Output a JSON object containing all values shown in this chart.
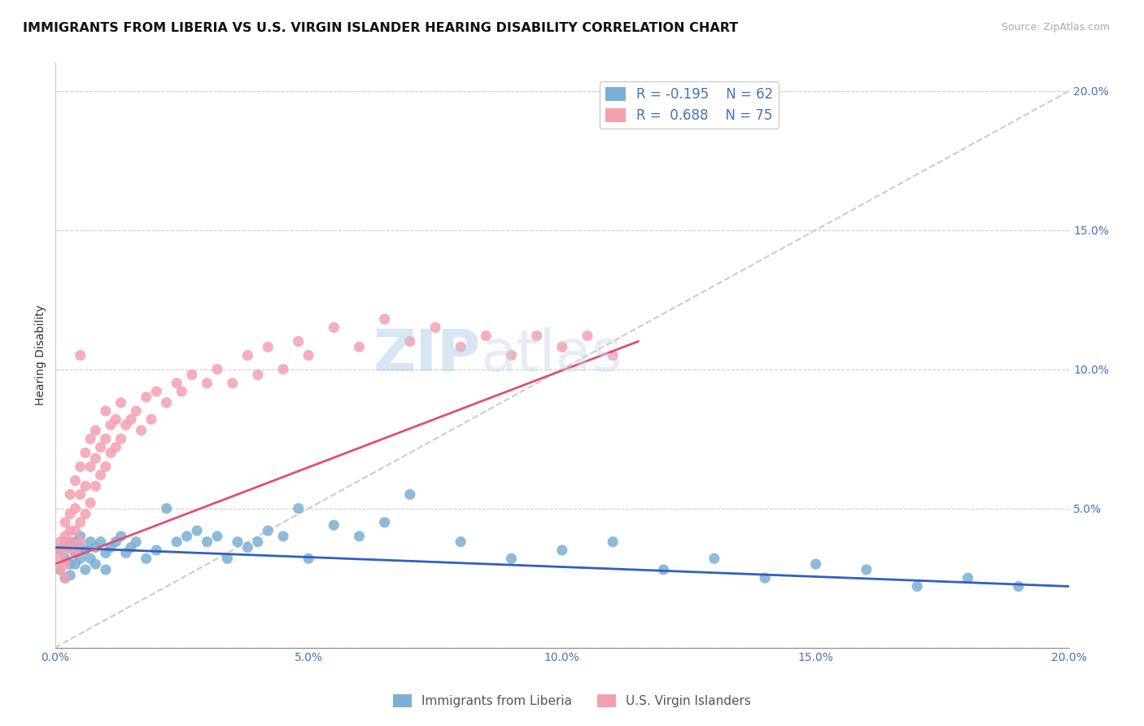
{
  "title": "IMMIGRANTS FROM LIBERIA VS U.S. VIRGIN ISLANDER HEARING DISABILITY CORRELATION CHART",
  "source_text": "Source: ZipAtlas.com",
  "ylabel": "Hearing Disability",
  "xlim": [
    0.0,
    0.2
  ],
  "ylim": [
    0.0,
    0.21
  ],
  "xticks": [
    0.0,
    0.05,
    0.1,
    0.15,
    0.2
  ],
  "yticks": [
    0.0,
    0.05,
    0.1,
    0.15,
    0.2
  ],
  "xticklabels": [
    "0.0%",
    "5.0%",
    "10.0%",
    "15.0%",
    "20.0%"
  ],
  "yticklabels_right": [
    "",
    "5.0%",
    "10.0%",
    "15.0%",
    "20.0%"
  ],
  "blue_color": "#7bafd4",
  "pink_color": "#f4a0b0",
  "blue_line_color": "#3060c0",
  "pink_line_color": "#e05070",
  "R_blue": -0.195,
  "N_blue": 62,
  "R_pink": 0.688,
  "N_pink": 75,
  "legend_R_blue_text": "R = -0.195",
  "legend_N_blue_text": "N = 62",
  "legend_R_pink_text": "R =  0.688",
  "legend_N_pink_text": "N = 75",
  "watermark_zip": "ZIP",
  "watermark_atlas": "atlas",
  "blue_scatter_x": [
    0.001,
    0.001,
    0.002,
    0.002,
    0.002,
    0.003,
    0.003,
    0.003,
    0.003,
    0.004,
    0.004,
    0.004,
    0.005,
    0.005,
    0.005,
    0.006,
    0.006,
    0.007,
    0.007,
    0.008,
    0.008,
    0.009,
    0.01,
    0.01,
    0.011,
    0.012,
    0.013,
    0.014,
    0.015,
    0.016,
    0.018,
    0.02,
    0.022,
    0.024,
    0.026,
    0.028,
    0.03,
    0.032,
    0.034,
    0.036,
    0.038,
    0.04,
    0.042,
    0.045,
    0.048,
    0.05,
    0.055,
    0.06,
    0.065,
    0.07,
    0.08,
    0.09,
    0.1,
    0.11,
    0.12,
    0.13,
    0.14,
    0.15,
    0.16,
    0.17,
    0.18,
    0.19
  ],
  "blue_scatter_y": [
    0.035,
    0.028,
    0.038,
    0.032,
    0.025,
    0.036,
    0.03,
    0.038,
    0.026,
    0.034,
    0.038,
    0.03,
    0.036,
    0.032,
    0.04,
    0.035,
    0.028,
    0.038,
    0.032,
    0.036,
    0.03,
    0.038,
    0.034,
    0.028,
    0.036,
    0.038,
    0.04,
    0.034,
    0.036,
    0.038,
    0.032,
    0.035,
    0.05,
    0.038,
    0.04,
    0.042,
    0.038,
    0.04,
    0.032,
    0.038,
    0.036,
    0.038,
    0.042,
    0.04,
    0.05,
    0.032,
    0.044,
    0.04,
    0.045,
    0.055,
    0.038,
    0.032,
    0.035,
    0.038,
    0.028,
    0.032,
    0.025,
    0.03,
    0.028,
    0.022,
    0.025,
    0.022
  ],
  "pink_scatter_x": [
    0.001,
    0.001,
    0.001,
    0.001,
    0.002,
    0.002,
    0.002,
    0.002,
    0.002,
    0.003,
    0.003,
    0.003,
    0.003,
    0.003,
    0.004,
    0.004,
    0.004,
    0.004,
    0.005,
    0.005,
    0.005,
    0.005,
    0.005,
    0.006,
    0.006,
    0.006,
    0.007,
    0.007,
    0.007,
    0.008,
    0.008,
    0.008,
    0.009,
    0.009,
    0.01,
    0.01,
    0.01,
    0.011,
    0.011,
    0.012,
    0.012,
    0.013,
    0.013,
    0.014,
    0.015,
    0.016,
    0.017,
    0.018,
    0.019,
    0.02,
    0.022,
    0.024,
    0.025,
    0.027,
    0.03,
    0.032,
    0.035,
    0.038,
    0.04,
    0.042,
    0.045,
    0.048,
    0.05,
    0.055,
    0.06,
    0.065,
    0.07,
    0.075,
    0.08,
    0.085,
    0.09,
    0.095,
    0.1,
    0.105,
    0.11
  ],
  "pink_scatter_y": [
    0.028,
    0.032,
    0.038,
    0.035,
    0.03,
    0.04,
    0.035,
    0.045,
    0.025,
    0.036,
    0.042,
    0.048,
    0.038,
    0.055,
    0.042,
    0.05,
    0.06,
    0.035,
    0.045,
    0.055,
    0.065,
    0.038,
    0.105,
    0.048,
    0.058,
    0.07,
    0.052,
    0.065,
    0.075,
    0.058,
    0.068,
    0.078,
    0.062,
    0.072,
    0.065,
    0.075,
    0.085,
    0.07,
    0.08,
    0.072,
    0.082,
    0.075,
    0.088,
    0.08,
    0.082,
    0.085,
    0.078,
    0.09,
    0.082,
    0.092,
    0.088,
    0.095,
    0.092,
    0.098,
    0.095,
    0.1,
    0.095,
    0.105,
    0.098,
    0.108,
    0.1,
    0.11,
    0.105,
    0.115,
    0.108,
    0.118,
    0.11,
    0.115,
    0.108,
    0.112,
    0.105,
    0.112,
    0.108,
    0.112,
    0.105
  ],
  "title_fontsize": 11.5,
  "axis_label_fontsize": 10,
  "tick_fontsize": 10,
  "legend_fontsize": 12,
  "watermark_fontsize": 52,
  "source_fontsize": 9
}
